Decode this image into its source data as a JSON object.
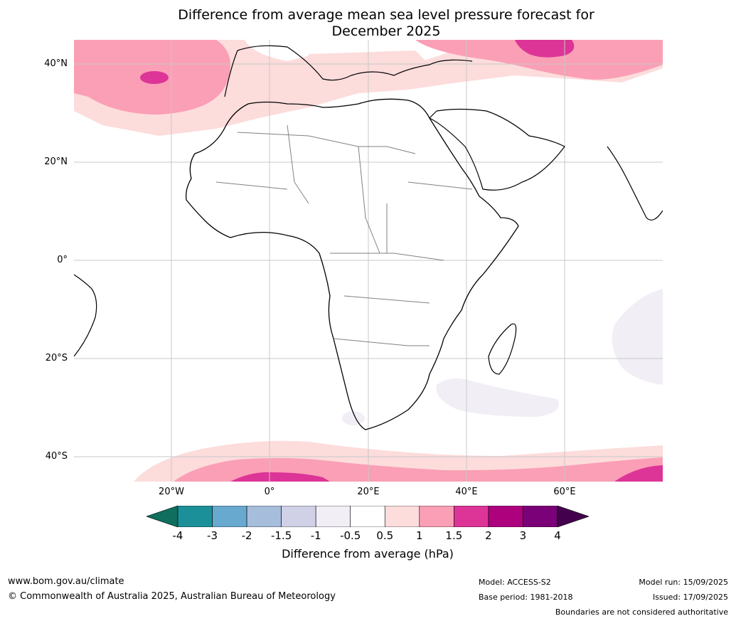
{
  "title": {
    "line1": "Difference from average mean sea level pressure forecast for",
    "line2": "December 2025"
  },
  "map": {
    "lat_labels": [
      "40°N",
      "20°N",
      "0°",
      "20°S",
      "40°S"
    ],
    "lon_labels": [
      "20°W",
      "0°",
      "20°E",
      "40°E",
      "60°E"
    ],
    "extent": {
      "lon_min": -40,
      "lon_max": 80,
      "lat_min": -45,
      "lat_max": 45
    },
    "coastline_color": "#000000",
    "border_color": "#808080",
    "grid": true
  },
  "colorbar": {
    "label": "Difference from average (hPa)",
    "ticks": [
      "-4",
      "-3",
      "-2",
      "-1.5",
      "-1",
      "-0.5",
      "0.5",
      "1",
      "1.5",
      "2",
      "3",
      "4"
    ],
    "under_color": "#0f6e5e",
    "over_color": "#43004d",
    "bins": [
      "#1c9099",
      "#67a9cf",
      "#a6bddb",
      "#d0d1e6",
      "#f1eef6",
      "#ffffff",
      "#fddcdc",
      "#fa9fb5",
      "#dd3497",
      "#ae017e",
      "#7a0177"
    ]
  },
  "footer": {
    "website": "www.bom.gov.au/climate",
    "copyright": "© Commonwealth of Australia 2025, Australian Bureau of Meteorology",
    "model": "Model: ACCESS-S2",
    "base_period": "Base period: 1981-2018",
    "model_run": "Model run: 15/09/2025",
    "issued": "Issued: 17/09/2025",
    "disclaimer": "Boundaries are not considered authoritative"
  }
}
